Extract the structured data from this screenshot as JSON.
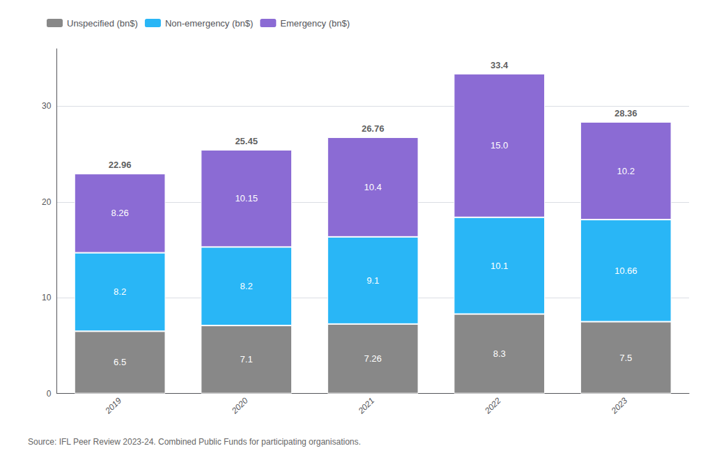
{
  "chart_data": {
    "type": "bar",
    "stacked": true,
    "categories": [
      "2019",
      "2020",
      "2021",
      "2022",
      "2023"
    ],
    "series": [
      {
        "name": "Unspecified (bn$)",
        "color": "#888888",
        "values": [
          6.5,
          7.1,
          7.26,
          8.3,
          7.5
        ]
      },
      {
        "name": "Non-emergency (bn$)",
        "color": "#29b6f6",
        "values": [
          8.2,
          8.2,
          9.1,
          10.1,
          10.66
        ]
      },
      {
        "name": "Emergency (bn$)",
        "color": "#8b6bd4",
        "values": [
          8.26,
          10.15,
          10.4,
          15.0,
          10.2
        ],
        "value_labels": [
          "8.26",
          "10.15",
          "10.4",
          "15.0",
          "10.2"
        ]
      }
    ],
    "totals": [
      22.96,
      25.45,
      26.76,
      33.4,
      28.36
    ],
    "data_labels": true,
    "ylim": [
      0,
      36
    ],
    "yticks": [
      0,
      10,
      20,
      30
    ],
    "grid": true,
    "legend": "upper left",
    "annotations": [
      "Source: IFL Peer Review 2023-24. Combined Public Funds for participating organisations."
    ]
  }
}
